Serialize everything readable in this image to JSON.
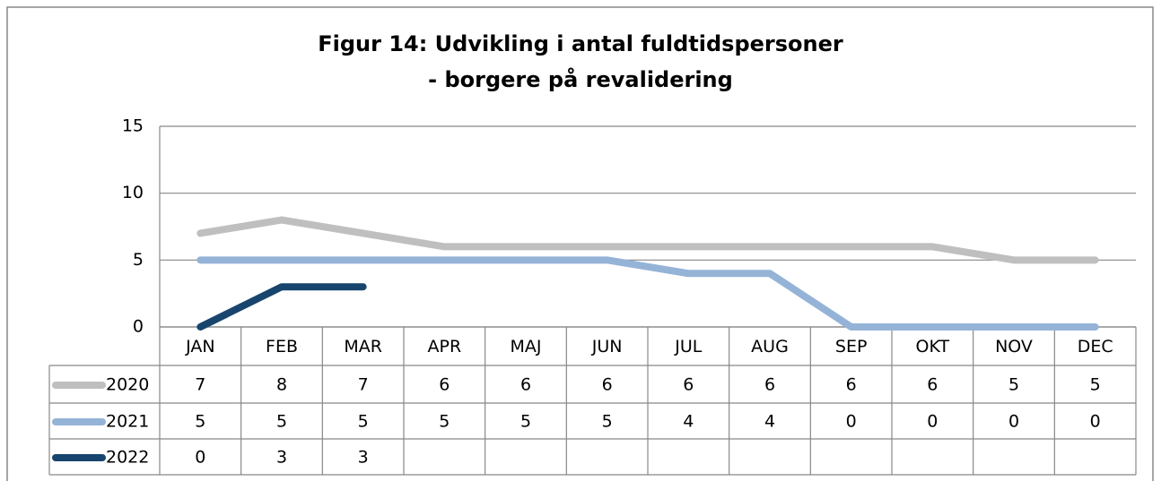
{
  "chart_data": {
    "type": "line",
    "title": [
      "Figur 14: Udvikling i antal fuldtidspersoner",
      "- borgere på revalidering"
    ],
    "categories": [
      "JAN",
      "FEB",
      "MAR",
      "APR",
      "MAJ",
      "JUN",
      "JUL",
      "AUG",
      "SEP",
      "OKT",
      "NOV",
      "DEC"
    ],
    "series": [
      {
        "name": "2020",
        "color": "#bfbfbf",
        "values": [
          7,
          8,
          7,
          6,
          6,
          6,
          6,
          6,
          6,
          6,
          5,
          5
        ]
      },
      {
        "name": "2021",
        "color": "#95b3d7",
        "values": [
          5,
          5,
          5,
          5,
          5,
          5,
          4,
          4,
          0,
          0,
          0,
          0
        ]
      },
      {
        "name": "2022",
        "color": "#17456e",
        "values": [
          0,
          3,
          3,
          null,
          null,
          null,
          null,
          null,
          null,
          null,
          null,
          null
        ]
      }
    ],
    "ylim": [
      0,
      15
    ],
    "yticks": [
      0,
      5,
      10,
      15
    ],
    "grid": true
  }
}
